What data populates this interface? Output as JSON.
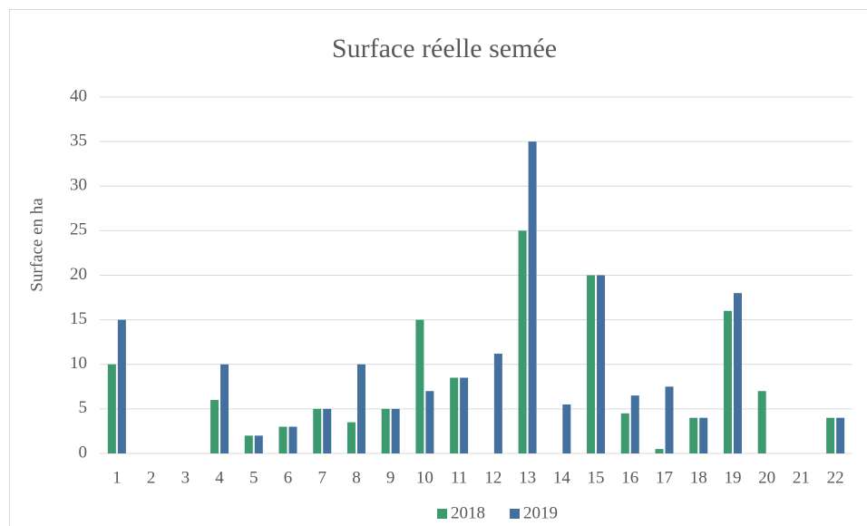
{
  "chart_data": {
    "type": "bar",
    "title": "Surface réelle semée",
    "y_label": "Surface en ha",
    "categories": [
      "1",
      "2",
      "3",
      "4",
      "5",
      "6",
      "7",
      "8",
      "9",
      "10",
      "11",
      "12",
      "13",
      "14",
      "15",
      "16",
      "17",
      "18",
      "19",
      "20",
      "21",
      "22"
    ],
    "series": [
      {
        "name": "2018",
        "color": "#3d9a6f",
        "values": [
          10,
          0,
          0,
          6,
          2,
          3,
          5,
          3.5,
          5,
          15,
          8.5,
          0,
          25,
          0,
          20,
          4.5,
          0.5,
          4,
          16,
          7,
          0,
          4
        ]
      },
      {
        "name": "2019",
        "color": "#44709d",
        "values": [
          15,
          0,
          0,
          10,
          2,
          3,
          5,
          10,
          5,
          7,
          8.5,
          11.2,
          35,
          5.5,
          20,
          6.5,
          7.5,
          4,
          18,
          0,
          0,
          4
        ]
      }
    ],
    "ylim": [
      0,
      40
    ],
    "yticks": [
      0,
      5,
      10,
      15,
      20,
      25,
      30,
      35,
      40
    ],
    "grid": true,
    "legend": "bottom"
  }
}
